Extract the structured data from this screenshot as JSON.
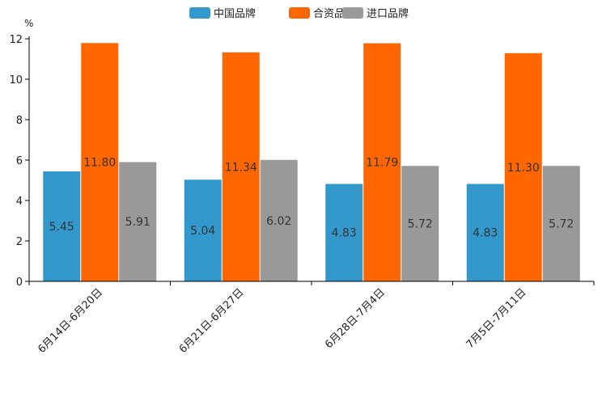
{
  "chart_data": {
    "type": "bar",
    "title": "",
    "unit": "%",
    "xlabel": "",
    "ylabel": "%",
    "ylim": [
      0,
      12
    ],
    "yticks": [
      0,
      2,
      4,
      6,
      8,
      10,
      12
    ],
    "grid": false,
    "legend_position": "top-center",
    "categories": [
      "6月14日-6月20日",
      "6月21日-6月27日",
      "6月28日-7月4日",
      "7月5日-7月11日"
    ],
    "series": [
      {
        "name": "中国品牌",
        "color": "#3399cc",
        "values": [
          5.45,
          5.04,
          4.83,
          4.83
        ],
        "labels": [
          "5.45",
          "5.04",
          "4.83",
          "4.83"
        ]
      },
      {
        "name": "合资品牌",
        "color": "#ff6600",
        "values": [
          11.8,
          11.34,
          11.79,
          11.3
        ],
        "labels": [
          "11.80",
          "11.34",
          "11.79",
          "11.30"
        ]
      },
      {
        "name": "进口品牌",
        "color": "#999999",
        "values": [
          5.91,
          6.02,
          5.72,
          5.72
        ],
        "labels": [
          "5.91",
          "6.02",
          "5.72",
          "5.72"
        ]
      }
    ]
  }
}
